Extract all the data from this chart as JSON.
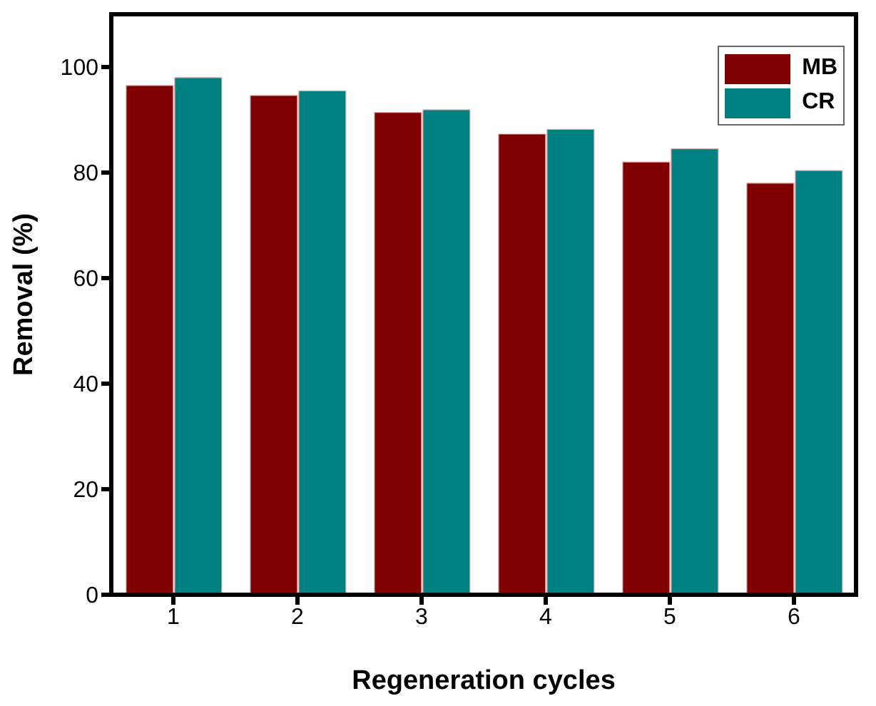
{
  "chart_data": {
    "type": "bar",
    "xlabel": "Regeneration cycles",
    "ylabel": "Removal (%)",
    "categories": [
      "1",
      "2",
      "3",
      "4",
      "5",
      "6"
    ],
    "series": [
      {
        "name": "MB",
        "color": "#800000",
        "values": [
          96.5,
          94.6,
          91.4,
          87.3,
          82.0,
          78.0
        ]
      },
      {
        "name": "CR",
        "color": "#008080",
        "values": [
          98.0,
          95.5,
          91.9,
          88.2,
          84.5,
          80.4
        ]
      }
    ],
    "ylim": [
      0,
      110
    ],
    "yticks": [
      0,
      20,
      40,
      60,
      80,
      100
    ],
    "grid": false,
    "legend": "top right"
  }
}
